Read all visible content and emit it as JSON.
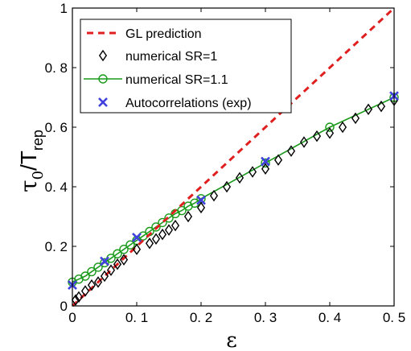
{
  "chart_data": {
    "type": "line",
    "xlabel": "ε",
    "ylabel_main": "τ",
    "ylabel_sub0": "0",
    "ylabel_rest": "/T",
    "ylabel_subrep": "rep",
    "xlim": [
      0,
      0.5
    ],
    "ylim": [
      0,
      1
    ],
    "x_ticks": [
      0,
      0.1,
      0.2,
      0.3,
      0.4,
      0.5
    ],
    "x_tick_labels": [
      "0",
      "0. 1",
      "0. 2",
      "0. 3",
      "0. 4",
      "0. 5"
    ],
    "y_ticks": [
      0,
      0.2,
      0.4,
      0.6,
      0.8,
      1
    ],
    "y_tick_labels": [
      "0",
      "0. 2",
      "0. 4",
      "0. 6",
      "0. 8",
      "1"
    ],
    "grid": false,
    "legend_position": "top-left",
    "series": [
      {
        "name": "GL prediction",
        "style": "dashed-line",
        "color": "#e02020",
        "x": [
          0,
          0.5
        ],
        "y": [
          0,
          1.0
        ]
      },
      {
        "name": "numerical SR=1",
        "style": "diamond-markers",
        "color": "#000000",
        "x": [
          0.005,
          0.01,
          0.02,
          0.03,
          0.04,
          0.05,
          0.06,
          0.07,
          0.08,
          0.1,
          0.12,
          0.13,
          0.14,
          0.15,
          0.16,
          0.18,
          0.2,
          0.22,
          0.24,
          0.26,
          0.28,
          0.3,
          0.32,
          0.34,
          0.36,
          0.38,
          0.4,
          0.42,
          0.44,
          0.46,
          0.48,
          0.5
        ],
        "y": [
          0.02,
          0.03,
          0.05,
          0.07,
          0.08,
          0.1,
          0.12,
          0.14,
          0.155,
          0.19,
          0.21,
          0.225,
          0.24,
          0.255,
          0.27,
          0.3,
          0.33,
          0.37,
          0.4,
          0.43,
          0.45,
          0.46,
          0.49,
          0.52,
          0.55,
          0.57,
          0.58,
          0.6,
          0.63,
          0.66,
          0.67,
          0.69
        ]
      },
      {
        "name": "numerical SR=1.1",
        "style": "line-circle-markers",
        "color": "#1a9a1a",
        "x": [
          0,
          0.01,
          0.02,
          0.03,
          0.04,
          0.05,
          0.06,
          0.07,
          0.08,
          0.09,
          0.1,
          0.11,
          0.12,
          0.13,
          0.14,
          0.15,
          0.16,
          0.17,
          0.18,
          0.19,
          0.2,
          0.3,
          0.4,
          0.5
        ],
        "y": [
          0.08,
          0.09,
          0.1,
          0.115,
          0.13,
          0.145,
          0.16,
          0.175,
          0.19,
          0.205,
          0.22,
          0.235,
          0.25,
          0.265,
          0.28,
          0.295,
          0.31,
          0.32,
          0.335,
          0.345,
          0.36,
          0.48,
          0.6,
          0.7
        ]
      },
      {
        "name": "Autocorrelations (exp)",
        "style": "x-markers",
        "color": "#4040dd",
        "x": [
          0,
          0.05,
          0.1,
          0.2,
          0.3,
          0.5
        ],
        "y": [
          0.07,
          0.15,
          0.23,
          0.355,
          0.485,
          0.705
        ]
      }
    ]
  }
}
